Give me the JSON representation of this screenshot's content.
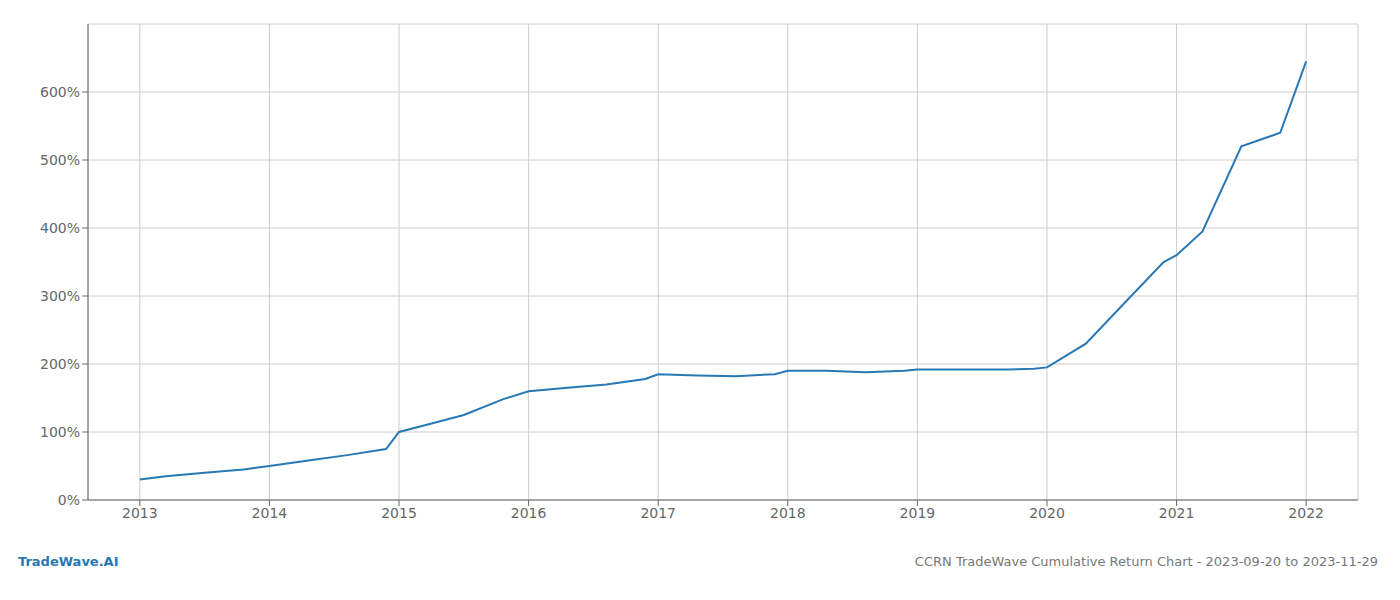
{
  "chart_data": {
    "type": "line",
    "title": "CCRN TradeWave Cumulative Return Chart - 2023-09-20 to 2023-11-29",
    "annotations": [
      "TradeWave.AI"
    ],
    "color": "#2878b5",
    "grid": true,
    "x": [
      2013.0,
      2013.2,
      2013.5,
      2013.8,
      2014.0,
      2014.3,
      2014.6,
      2014.9,
      2015.0,
      2015.2,
      2015.5,
      2015.8,
      2016.0,
      2016.3,
      2016.6,
      2016.9,
      2017.0,
      2017.3,
      2017.6,
      2017.9,
      2018.0,
      2018.3,
      2018.6,
      2018.9,
      2019.0,
      2019.15,
      2019.4,
      2019.7,
      2019.9,
      2020.0,
      2020.3,
      2020.6,
      2020.9,
      2021.0,
      2021.2,
      2021.5,
      2021.8,
      2022.0
    ],
    "values": [
      30,
      35,
      40,
      45,
      50,
      58,
      66,
      75,
      100,
      110,
      125,
      148,
      160,
      165,
      170,
      178,
      185,
      183,
      182,
      185,
      190,
      190,
      188,
      190,
      192,
      192,
      192,
      192,
      193,
      195,
      230,
      290,
      350,
      360,
      395,
      520,
      540,
      645
    ],
    "xlim": [
      2012.6,
      2022.4
    ],
    "xticks": [
      2013,
      2014,
      2015,
      2016,
      2017,
      2018,
      2019,
      2020,
      2021,
      2022
    ],
    "ylim": [
      0,
      700
    ],
    "yticks": [
      {
        "value": 0,
        "label": "0%"
      },
      {
        "value": 100,
        "label": "100%"
      },
      {
        "value": 200,
        "label": "200%"
      },
      {
        "value": 300,
        "label": "300%"
      },
      {
        "value": 400,
        "label": "400%"
      },
      {
        "value": 500,
        "label": "500%"
      },
      {
        "value": 600,
        "label": "600%"
      }
    ]
  }
}
